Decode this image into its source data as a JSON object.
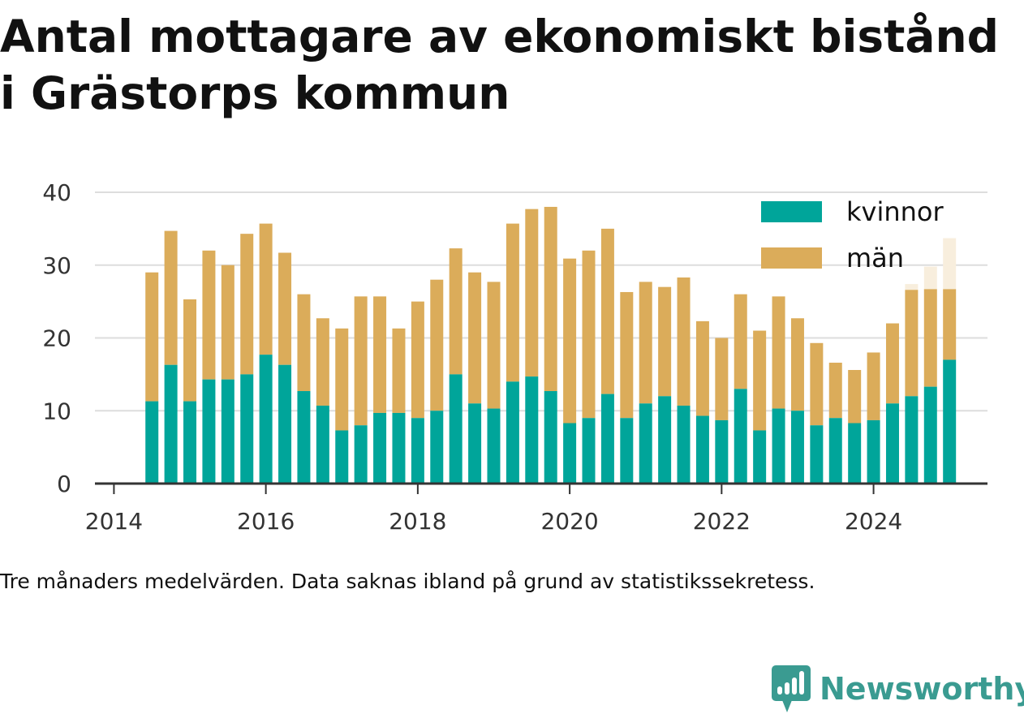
{
  "title": "Antal mottagare av ekonomiskt bistånd\ni Grästorps kommun",
  "caption": "Tre månaders medelvärden. Data saknas ibland på grund av statistikssekretess.",
  "brand": {
    "name": "Newsworthy",
    "color": "#3a9b91"
  },
  "chart_data": {
    "type": "bar",
    "stacked": true,
    "x_unit": "year (quarterly midpoints)",
    "x": [
      2014.5,
      2014.75,
      2015.0,
      2015.25,
      2015.5,
      2015.75,
      2016.0,
      2016.25,
      2016.5,
      2016.75,
      2017.0,
      2017.25,
      2017.5,
      2017.75,
      2018.0,
      2018.25,
      2018.5,
      2018.75,
      2019.0,
      2019.25,
      2019.5,
      2019.75,
      2020.0,
      2020.25,
      2020.5,
      2020.75,
      2021.0,
      2021.25,
      2021.5,
      2021.75,
      2022.0,
      2022.25,
      2022.5,
      2022.75,
      2023.0,
      2023.25,
      2023.5,
      2023.75,
      2024.0,
      2024.25,
      2024.5,
      2024.75,
      2025.0
    ],
    "series": [
      {
        "name": "kvinnor",
        "color": "#00a59a",
        "values": [
          11.3,
          16.3,
          11.3,
          14.3,
          14.3,
          15.0,
          17.7,
          16.3,
          12.7,
          10.7,
          7.3,
          8.0,
          9.7,
          9.7,
          9.0,
          10.0,
          15.0,
          11.0,
          10.3,
          14.0,
          14.7,
          12.7,
          8.3,
          9.0,
          12.3,
          9.0,
          11.0,
          12.0,
          10.7,
          9.3,
          8.7,
          13.0,
          7.3,
          10.3,
          10.0,
          8.0,
          9.0,
          8.3,
          8.7,
          11.0,
          12.0,
          13.3,
          17.0
        ]
      },
      {
        "name": "män",
        "color": "#dbac5a",
        "values": [
          17.7,
          18.4,
          14.0,
          17.7,
          15.7,
          19.3,
          18.0,
          15.4,
          13.3,
          12.0,
          14.0,
          17.7,
          16.0,
          11.6,
          16.0,
          18.0,
          17.3,
          18.0,
          17.4,
          21.7,
          23.0,
          25.3,
          22.6,
          23.0,
          22.7,
          17.3,
          16.7,
          15.0,
          17.6,
          13.0,
          11.3,
          13.0,
          13.7,
          15.4,
          12.7,
          11.3,
          7.6,
          7.3,
          9.3,
          11.0,
          14.6,
          13.4,
          9.7
        ]
      }
    ],
    "faded_last_period_totals": [
      27.4,
      29.8,
      33.7
    ],
    "faded_color": "#f8eedd",
    "xlim": [
      2013.75,
      2025.5
    ],
    "ylim": [
      0,
      40
    ],
    "xticks": [
      2014,
      2016,
      2018,
      2020,
      2022,
      2024
    ],
    "yticks": [
      0,
      10,
      20,
      30,
      40
    ],
    "grid": "horizontal",
    "legend": "top-right",
    "title": "Antal mottagare av ekonomiskt bistånd i Grästorps kommun",
    "xlabel": "",
    "ylabel": ""
  }
}
